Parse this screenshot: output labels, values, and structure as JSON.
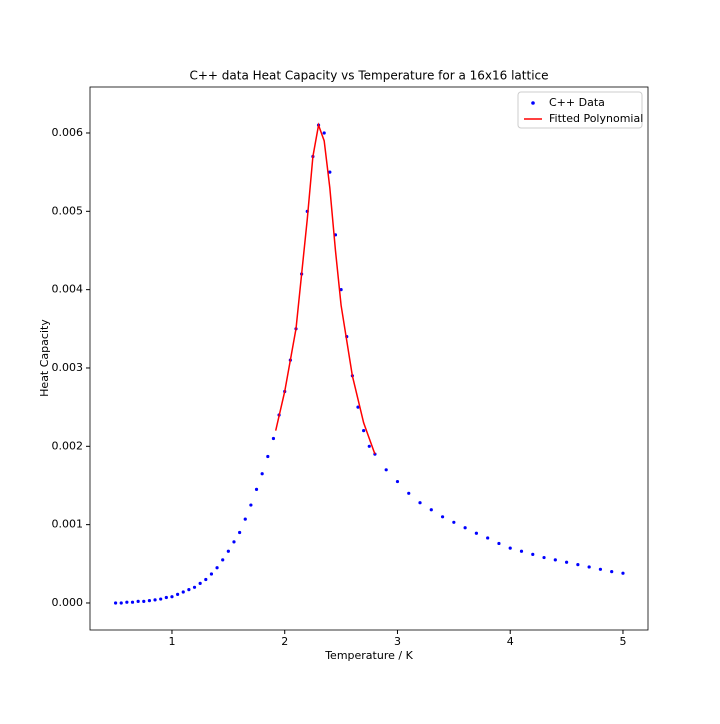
{
  "chart_data": {
    "type": "scatter",
    "title": "C++ data Heat Capacity vs Temperature for a 16x16 lattice",
    "xlabel": "Temperature / K",
    "ylabel": "Heat Capacity",
    "xlim": [
      0.273,
      5.222
    ],
    "ylim": [
      -0.000345,
      0.006587
    ],
    "xticks": [
      1,
      2,
      3,
      4,
      5
    ],
    "yticks": [
      {
        "value": 0,
        "label": "0.000"
      },
      {
        "value": 0.001,
        "label": "0.001"
      },
      {
        "value": 0.002,
        "label": "0.002"
      },
      {
        "value": 0.003,
        "label": "0.003"
      },
      {
        "value": 0.004,
        "label": "0.004"
      },
      {
        "value": 0.005,
        "label": "0.005"
      },
      {
        "value": 0.006,
        "label": "0.006"
      }
    ],
    "legend": "upper right",
    "series": [
      {
        "name": "C++ Data",
        "color": "#0000ff",
        "kind": "scatter",
        "x": [
          0.5,
          0.55,
          0.6,
          0.65,
          0.7,
          0.75,
          0.8,
          0.85,
          0.9,
          0.95,
          1.0,
          1.05,
          1.1,
          1.15,
          1.2,
          1.25,
          1.3,
          1.35,
          1.4,
          1.45,
          1.5,
          1.55,
          1.6,
          1.65,
          1.7,
          1.75,
          1.8,
          1.85,
          1.9,
          1.95,
          2.0,
          2.05,
          2.1,
          2.15,
          2.2,
          2.25,
          2.3,
          2.35,
          2.4,
          2.45,
          2.5,
          2.55,
          2.6,
          2.65,
          2.7,
          2.75,
          2.8,
          2.9,
          3.0,
          3.1,
          3.2,
          3.3,
          3.4,
          3.5,
          3.6,
          3.7,
          3.8,
          3.9,
          4.0,
          4.1,
          4.2,
          4.3,
          4.4,
          4.5,
          4.6,
          4.7,
          4.8,
          4.9,
          5.0
        ],
        "values": [
          0.0,
          0.0,
          1e-05,
          1e-05,
          2e-05,
          2e-05,
          3e-05,
          4e-05,
          5e-05,
          7e-05,
          8e-05,
          0.00011,
          0.00014,
          0.00017,
          0.0002,
          0.00025,
          0.0003,
          0.00037,
          0.00045,
          0.00055,
          0.00066,
          0.00078,
          0.0009,
          0.00107,
          0.00125,
          0.00145,
          0.00165,
          0.00187,
          0.0021,
          0.0024,
          0.0027,
          0.0031,
          0.0035,
          0.0042,
          0.005,
          0.0057,
          0.0061,
          0.006,
          0.0055,
          0.0047,
          0.004,
          0.0034,
          0.0029,
          0.0025,
          0.0022,
          0.002,
          0.0019,
          0.0017,
          0.00155,
          0.0014,
          0.00128,
          0.00119,
          0.0011,
          0.00103,
          0.00096,
          0.00089,
          0.00083,
          0.00076,
          0.0007,
          0.00066,
          0.00062,
          0.00058,
          0.00055,
          0.00052,
          0.00049,
          0.00046,
          0.00043,
          0.0004,
          0.00038
        ]
      },
      {
        "name": "Fitted Polynomial",
        "color": "#ff0000",
        "kind": "line",
        "x": [
          1.92,
          2.0,
          2.1,
          2.2,
          2.25,
          2.3,
          2.35,
          2.4,
          2.45,
          2.5,
          2.6,
          2.7,
          2.75,
          2.8
        ],
        "values": [
          0.0022,
          0.0027,
          0.0035,
          0.0049,
          0.0057,
          0.0061,
          0.0059,
          0.0053,
          0.0045,
          0.0038,
          0.0029,
          0.0023,
          0.0021,
          0.0019
        ]
      }
    ]
  }
}
